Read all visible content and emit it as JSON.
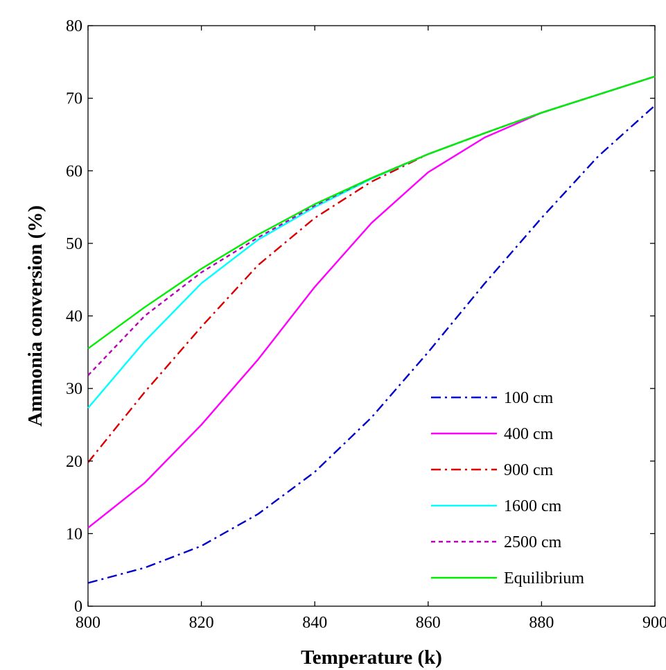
{
  "chart_data": {
    "type": "line",
    "title": "",
    "xlabel": "Temperature (k)",
    "ylabel": "Ammonia conversion (%)",
    "xlim": [
      800,
      900
    ],
    "ylim": [
      0,
      80
    ],
    "xticks": [
      800,
      820,
      840,
      860,
      880,
      900
    ],
    "yticks": [
      0,
      10,
      20,
      30,
      40,
      50,
      60,
      70,
      80
    ],
    "grid": false,
    "legend_position": "bottom-right",
    "x": [
      800,
      810,
      820,
      830,
      840,
      850,
      860,
      870,
      880,
      890,
      900
    ],
    "series": [
      {
        "name": "100 cm",
        "color": "#0000cc",
        "dash": "dash-dot",
        "values": [
          3.2,
          5.3,
          8.3,
          12.7,
          18.5,
          26.0,
          35.0,
          44.5,
          53.5,
          62.0,
          69.0
        ]
      },
      {
        "name": "400 cm",
        "color": "#ff00ff",
        "dash": "solid",
        "values": [
          10.8,
          17.0,
          25.0,
          34.0,
          44.0,
          52.8,
          59.8,
          64.6,
          68.0,
          70.5,
          73.0
        ]
      },
      {
        "name": "900 cm",
        "color": "#dd0000",
        "dash": "dash-dot",
        "values": [
          19.8,
          29.5,
          38.5,
          47.0,
          53.5,
          58.5,
          62.3,
          65.2,
          68.0,
          70.5,
          73.0
        ]
      },
      {
        "name": "1600 cm",
        "color": "#00ffff",
        "dash": "solid",
        "values": [
          27.3,
          36.5,
          44.5,
          50.5,
          55.0,
          58.9,
          62.3,
          65.2,
          68.0,
          70.5,
          73.0
        ]
      },
      {
        "name": "2500 cm",
        "color": "#bb00bb",
        "dash": "dotted",
        "values": [
          31.8,
          40.0,
          46.0,
          50.8,
          55.2,
          59.0,
          62.3,
          65.2,
          68.0,
          70.5,
          73.0
        ]
      },
      {
        "name": "Equilibrium",
        "color": "#00ee00",
        "dash": "solid",
        "values": [
          35.5,
          41.2,
          46.5,
          51.2,
          55.4,
          59.0,
          62.3,
          65.2,
          68.0,
          70.5,
          73.0
        ]
      }
    ]
  }
}
